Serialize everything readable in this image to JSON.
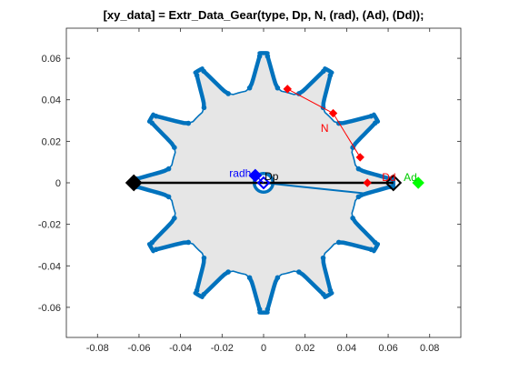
{
  "chart_data": {
    "type": "line",
    "title": "[xy_data] = Extr_Data_Gear(type, Dp, N, (rad), (Ad), (Dd));",
    "xlabel": "",
    "ylabel": "",
    "xlim": [
      -0.095,
      0.095
    ],
    "ylim": [
      -0.0745,
      0.0745
    ],
    "grid": false,
    "x_ticks": [
      -0.08,
      -0.06,
      -0.04,
      -0.02,
      0,
      0.02,
      0.04,
      0.06,
      0.08
    ],
    "x_tick_labels": [
      "-0.08",
      "-0.06",
      "-0.04",
      "-0.02",
      "0",
      "0.02",
      "0.04",
      "0.06",
      "0.08"
    ],
    "y_ticks": [
      0.06,
      0.04,
      0.02,
      0,
      -0.02,
      -0.04,
      -0.06
    ],
    "y_tick_labels": [
      "0.06",
      "0.04",
      "0.02",
      "0",
      "-0.02",
      "-0.04",
      "-0.06"
    ],
    "gear": {
      "num_teeth": 12,
      "pitch_radius": 0.05,
      "addendum_radius": 0.0625,
      "dedendum_radius": 0.045,
      "bore_radius": 0.0045,
      "fill_color": "#e6e6e6",
      "outline_color": "#0072bd"
    },
    "series": [
      {
        "name": "diameter",
        "x": [
          -0.0625,
          0.0625
        ],
        "y": [
          0,
          0
        ],
        "color": "#000000"
      },
      {
        "name": "N",
        "x": [
          0.0115,
          0.0335,
          0.0465
        ],
        "y": [
          0.0452,
          0.0335,
          0.0123
        ],
        "color": "#ff0000"
      },
      {
        "name": "rad",
        "x": [
          -0.004,
          0.0
        ],
        "y": [
          0.0035,
          0.0
        ],
        "color": "#0000ff"
      },
      {
        "name": "Dd",
        "x": [
          0.05
        ],
        "y": [
          0.0
        ],
        "color": "#ff0000"
      },
      {
        "name": "Ad",
        "x": [
          0.0745
        ],
        "y": [
          0.0
        ],
        "color": "#00ff00"
      }
    ],
    "annotations": [
      {
        "text": "N",
        "x": 0.0275,
        "y": 0.0245,
        "color": "#ff0000"
      },
      {
        "text": "radh",
        "x": -0.0165,
        "y": 0.0028,
        "color": "#0000ff"
      },
      {
        "text": "Dp",
        "x": 0.0005,
        "y": 0.0014,
        "color": "#000000"
      },
      {
        "text": "Dd",
        "x": 0.057,
        "y": 0.0008,
        "color": "#ff0000"
      },
      {
        "text": "Ad",
        "x": 0.0675,
        "y": 0.0008,
        "color": "#00cc00"
      }
    ]
  }
}
